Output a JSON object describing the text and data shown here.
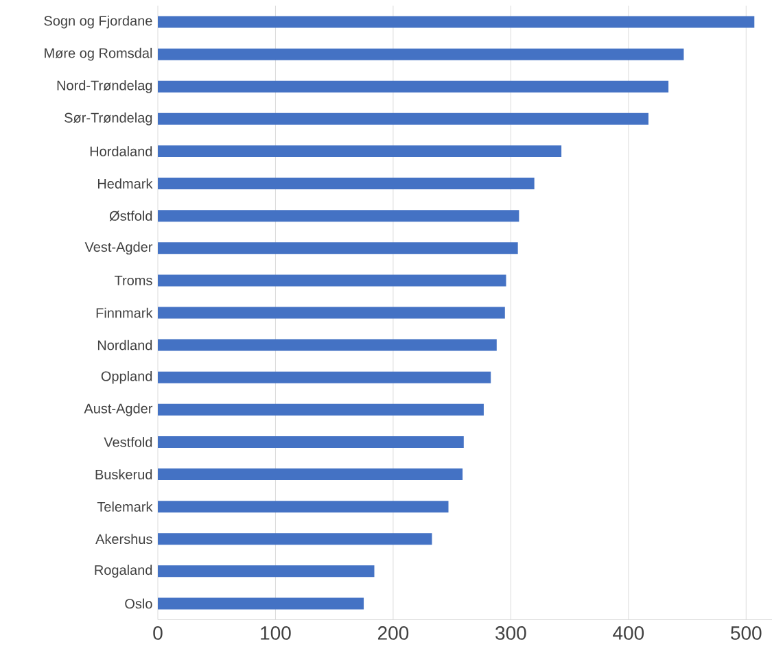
{
  "chart_data": {
    "type": "bar",
    "orientation": "horizontal",
    "categories": [
      "Sogn og Fjordane",
      "Møre og Romsdal",
      "Nord-Trøndelag",
      "Sør-Trøndelag",
      "Hordaland",
      "Hedmark",
      "Østfold",
      "Vest-Agder",
      "Troms",
      "Finnmark",
      "Nordland",
      "Oppland",
      "Aust-Agder",
      "Vestfold",
      "Buskerud",
      "Telemark",
      "Akershus",
      "Rogaland",
      "Oslo"
    ],
    "values": [
      507,
      447,
      434,
      417,
      343,
      320,
      307,
      306,
      296,
      295,
      288,
      283,
      277,
      260,
      259,
      247,
      233,
      184,
      175
    ],
    "color": "#4472c4",
    "xlim": [
      0,
      522
    ],
    "xticks": [
      0,
      100,
      200,
      300,
      400,
      500
    ],
    "grid": "x"
  }
}
